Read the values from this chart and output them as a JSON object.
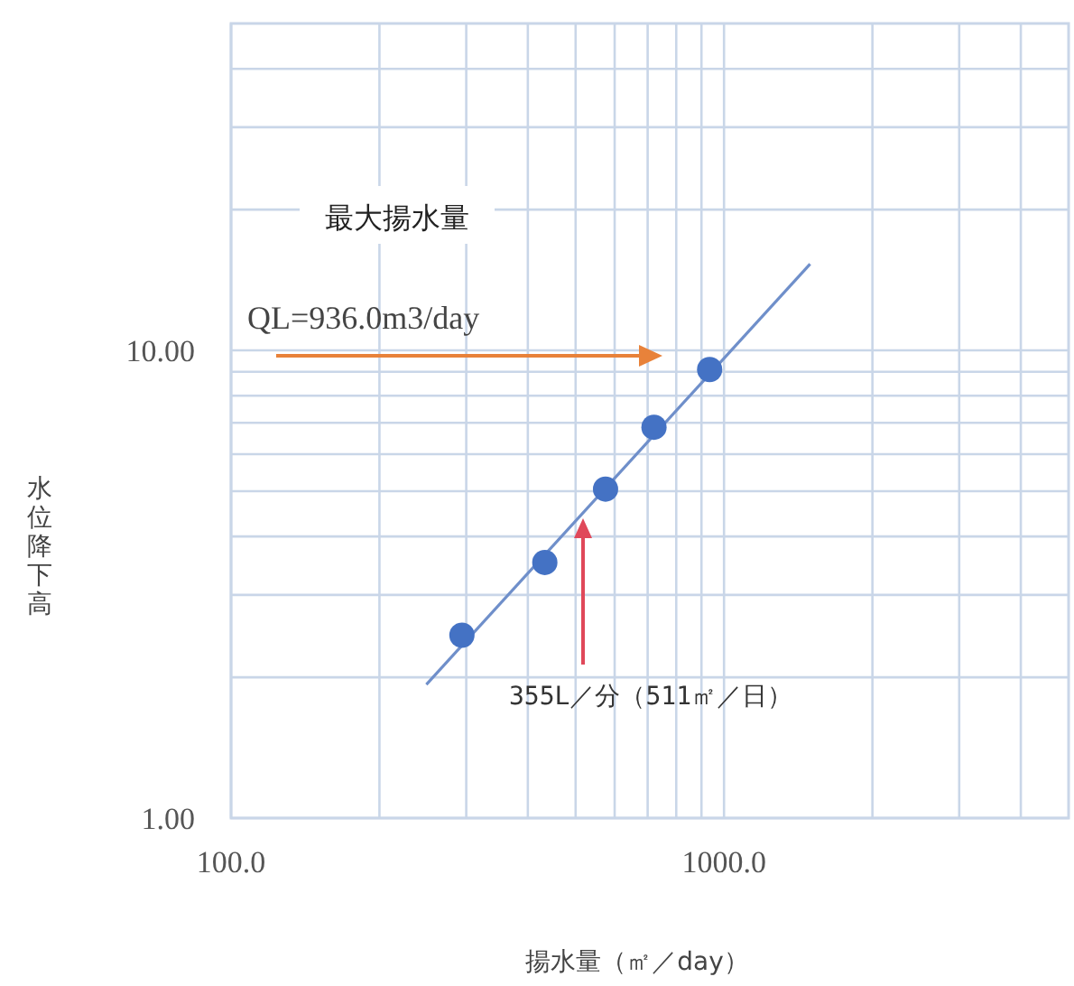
{
  "chart_data": {
    "type": "scatter",
    "xlabel": "揚水量（㎡／day）",
    "ylabel": "水位降下高",
    "log": "xy",
    "grid": true,
    "marker": "circle",
    "xlim": [
      100,
      5000
    ],
    "ylim": [
      1,
      50
    ],
    "xticks": [
      {
        "value": 100,
        "label": "100.0"
      },
      {
        "value": 200,
        "label": null
      },
      {
        "value": 300,
        "label": null
      },
      {
        "value": 400,
        "label": null
      },
      {
        "value": 500,
        "label": null
      },
      {
        "value": 600,
        "label": null
      },
      {
        "value": 700,
        "label": null
      },
      {
        "value": 800,
        "label": null
      },
      {
        "value": 900,
        "label": null
      },
      {
        "value": 1000,
        "label": "1000.0"
      },
      {
        "value": 2000,
        "label": null
      },
      {
        "value": 3000,
        "label": null
      },
      {
        "value": 4000,
        "label": null
      }
    ],
    "yticks": [
      {
        "value": 1,
        "label": "1.00"
      },
      {
        "value": 2,
        "label": null
      },
      {
        "value": 3,
        "label": null
      },
      {
        "value": 4,
        "label": null
      },
      {
        "value": 5,
        "label": null
      },
      {
        "value": 6,
        "label": null
      },
      {
        "value": 7,
        "label": null
      },
      {
        "value": 8,
        "label": null
      },
      {
        "value": 9,
        "label": null
      },
      {
        "value": 10,
        "label": "10.00"
      },
      {
        "value": 20,
        "label": null
      },
      {
        "value": 30,
        "label": null
      },
      {
        "value": 40,
        "label": null
      }
    ],
    "series": [
      {
        "type": "line",
        "color": "#6f8fca",
        "marker": "none",
        "x": [
          249,
          1495
        ],
        "values": [
          1.93,
          15.3
        ]
      },
      {
        "color": "#4472c4",
        "x": [
          294,
          433,
          575,
          721,
          935
        ],
        "values": [
          2.46,
          3.52,
          5.05,
          6.85,
          9.1
        ]
      }
    ],
    "annotations": [
      "最大揚水量",
      "QL=936.0m3/day",
      "355L／分（511㎡／日）"
    ]
  }
}
